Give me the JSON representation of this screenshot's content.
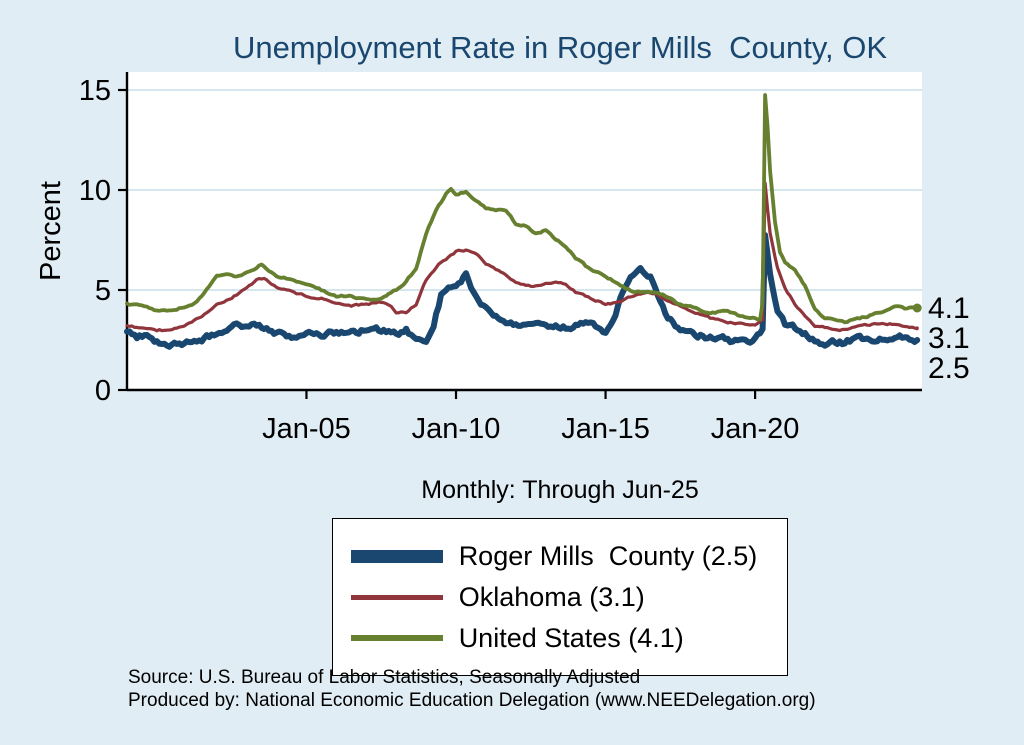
{
  "page": {
    "background": "#e1edf4",
    "title_color": "#1a476f"
  },
  "chart": {
    "title": "Unemployment Rate in Roger Mills  County, OK",
    "subtitle": "Monthly: Through Jun-25",
    "ylabel": "Percent"
  },
  "chart_data": {
    "type": "line",
    "title": "Unemployment Rate in Roger Mills  County, OK",
    "subtitle": "Monthly: Through Jun-25",
    "xlabel": "",
    "ylabel": "Percent",
    "ylim": [
      0,
      15
    ],
    "yticks": [
      0,
      5,
      10,
      15
    ],
    "x_range": [
      1999.0,
      2025.58
    ],
    "xticks": [
      {
        "t": 2005,
        "label": "Jan-05"
      },
      {
        "t": 2010,
        "label": "Jan-10"
      },
      {
        "t": 2015,
        "label": "Jan-15"
      },
      {
        "t": 2020,
        "label": "Jan-20"
      }
    ],
    "grid": true,
    "legend_position": "below",
    "series": [
      {
        "name": "Roger Mills  County",
        "end_label": "2.5",
        "color": "#1a476f",
        "width": 6,
        "jitter": 0.15,
        "seed": 7,
        "end_dot": false,
        "points": [
          [
            1999.0,
            2.8
          ],
          [
            1999.33,
            2.6
          ],
          [
            1999.67,
            2.7
          ],
          [
            2000.0,
            2.4
          ],
          [
            2000.33,
            2.2
          ],
          [
            2000.67,
            2.2
          ],
          [
            2001.0,
            2.3
          ],
          [
            2001.33,
            2.3
          ],
          [
            2001.67,
            2.6
          ],
          [
            2002.0,
            2.9
          ],
          [
            2002.33,
            3.1
          ],
          [
            2002.67,
            3.2
          ],
          [
            2003.0,
            3.1
          ],
          [
            2003.33,
            3.3
          ],
          [
            2003.67,
            3.1
          ],
          [
            2004.0,
            2.9
          ],
          [
            2004.33,
            2.7
          ],
          [
            2004.67,
            2.6
          ],
          [
            2005.0,
            2.8
          ],
          [
            2005.33,
            2.9
          ],
          [
            2005.67,
            2.8
          ],
          [
            2006.0,
            2.9
          ],
          [
            2006.33,
            3.0
          ],
          [
            2006.67,
            2.9
          ],
          [
            2007.0,
            3.1
          ],
          [
            2007.33,
            3.0
          ],
          [
            2007.67,
            2.9
          ],
          [
            2008.0,
            2.8
          ],
          [
            2008.33,
            3.0
          ],
          [
            2008.67,
            2.5
          ],
          [
            2009.0,
            2.3
          ],
          [
            2009.25,
            3.3
          ],
          [
            2009.5,
            4.7
          ],
          [
            2009.75,
            5.0
          ],
          [
            2010.0,
            5.1
          ],
          [
            2010.17,
            5.4
          ],
          [
            2010.33,
            5.7
          ],
          [
            2010.5,
            5.1
          ],
          [
            2010.75,
            4.5
          ],
          [
            2011.0,
            4.0
          ],
          [
            2011.33,
            3.7
          ],
          [
            2011.67,
            3.5
          ],
          [
            2012.0,
            3.3
          ],
          [
            2012.33,
            3.1
          ],
          [
            2012.67,
            3.2
          ],
          [
            2013.0,
            3.3
          ],
          [
            2013.33,
            3.2
          ],
          [
            2013.67,
            3.1
          ],
          [
            2014.0,
            3.2
          ],
          [
            2014.33,
            3.3
          ],
          [
            2014.67,
            3.1
          ],
          [
            2015.0,
            2.9
          ],
          [
            2015.25,
            3.4
          ],
          [
            2015.5,
            4.6
          ],
          [
            2015.75,
            5.3
          ],
          [
            2016.0,
            5.9
          ],
          [
            2016.17,
            6.2
          ],
          [
            2016.33,
            5.9
          ],
          [
            2016.5,
            5.7
          ],
          [
            2016.75,
            4.7
          ],
          [
            2017.0,
            3.9
          ],
          [
            2017.25,
            3.4
          ],
          [
            2017.5,
            3.1
          ],
          [
            2017.75,
            2.9
          ],
          [
            2018.0,
            2.8
          ],
          [
            2018.33,
            2.7
          ],
          [
            2018.67,
            2.6
          ],
          [
            2019.0,
            2.5
          ],
          [
            2019.33,
            2.4
          ],
          [
            2019.67,
            2.5
          ],
          [
            2020.0,
            2.6
          ],
          [
            2020.25,
            3.0
          ],
          [
            2020.333,
            7.6
          ],
          [
            2020.417,
            6.8
          ],
          [
            2020.5,
            5.8
          ],
          [
            2020.75,
            4.0
          ],
          [
            2021.0,
            3.3
          ],
          [
            2021.33,
            3.1
          ],
          [
            2021.67,
            2.9
          ],
          [
            2022.0,
            2.5
          ],
          [
            2022.33,
            2.3
          ],
          [
            2022.67,
            2.4
          ],
          [
            2023.0,
            2.4
          ],
          [
            2023.33,
            2.6
          ],
          [
            2023.67,
            2.5
          ],
          [
            2024.0,
            2.5
          ],
          [
            2024.33,
            2.7
          ],
          [
            2024.67,
            2.6
          ],
          [
            2025.0,
            2.6
          ],
          [
            2025.42,
            2.5
          ]
        ]
      },
      {
        "name": "Oklahoma",
        "end_label": "3.1",
        "color": "#90353b",
        "width": 3.2,
        "jitter": 0.05,
        "seed": 13,
        "end_dot": false,
        "points": [
          [
            1999.0,
            3.2
          ],
          [
            1999.5,
            3.1
          ],
          [
            2000.0,
            3.0
          ],
          [
            2000.5,
            3.0
          ],
          [
            2001.0,
            3.3
          ],
          [
            2001.5,
            3.7
          ],
          [
            2002.0,
            4.3
          ],
          [
            2002.5,
            4.6
          ],
          [
            2003.0,
            5.1
          ],
          [
            2003.33,
            5.5
          ],
          [
            2003.58,
            5.6
          ],
          [
            2003.83,
            5.3
          ],
          [
            2004.0,
            5.1
          ],
          [
            2004.5,
            4.9
          ],
          [
            2005.0,
            4.7
          ],
          [
            2005.5,
            4.6
          ],
          [
            2006.0,
            4.4
          ],
          [
            2006.5,
            4.2
          ],
          [
            2007.0,
            4.3
          ],
          [
            2007.5,
            4.4
          ],
          [
            2007.83,
            4.2
          ],
          [
            2008.0,
            3.9
          ],
          [
            2008.33,
            3.9
          ],
          [
            2008.67,
            4.3
          ],
          [
            2009.0,
            5.5
          ],
          [
            2009.5,
            6.4
          ],
          [
            2009.83,
            6.7
          ],
          [
            2010.0,
            6.9
          ],
          [
            2010.33,
            7.0
          ],
          [
            2010.67,
            6.8
          ],
          [
            2011.0,
            6.3
          ],
          [
            2011.5,
            5.9
          ],
          [
            2012.0,
            5.4
          ],
          [
            2012.5,
            5.2
          ],
          [
            2013.0,
            5.3
          ],
          [
            2013.5,
            5.4
          ],
          [
            2013.83,
            5.1
          ],
          [
            2014.0,
            4.9
          ],
          [
            2014.5,
            4.6
          ],
          [
            2015.0,
            4.3
          ],
          [
            2015.5,
            4.4
          ],
          [
            2016.0,
            4.8
          ],
          [
            2016.33,
            4.9
          ],
          [
            2016.67,
            4.8
          ],
          [
            2017.0,
            4.5
          ],
          [
            2017.5,
            4.2
          ],
          [
            2018.0,
            3.9
          ],
          [
            2018.5,
            3.6
          ],
          [
            2019.0,
            3.4
          ],
          [
            2019.5,
            3.3
          ],
          [
            2020.0,
            3.2
          ],
          [
            2020.25,
            3.5
          ],
          [
            2020.333,
            10.3
          ],
          [
            2020.417,
            9.0
          ],
          [
            2020.5,
            7.8
          ],
          [
            2020.75,
            6.1
          ],
          [
            2021.0,
            5.1
          ],
          [
            2021.33,
            4.3
          ],
          [
            2021.67,
            3.7
          ],
          [
            2022.0,
            3.2
          ],
          [
            2022.5,
            3.1
          ],
          [
            2023.0,
            3.0
          ],
          [
            2023.5,
            3.2
          ],
          [
            2024.0,
            3.3
          ],
          [
            2024.5,
            3.3
          ],
          [
            2025.0,
            3.2
          ],
          [
            2025.42,
            3.1
          ]
        ]
      },
      {
        "name": "United States",
        "end_label": "4.1",
        "color": "#66802f",
        "width": 3.8,
        "jitter": 0.05,
        "seed": 29,
        "end_dot": true,
        "points": [
          [
            1999.0,
            4.3
          ],
          [
            1999.5,
            4.2
          ],
          [
            2000.0,
            4.0
          ],
          [
            2000.5,
            4.0
          ],
          [
            2001.0,
            4.2
          ],
          [
            2001.33,
            4.4
          ],
          [
            2001.67,
            5.0
          ],
          [
            2002.0,
            5.7
          ],
          [
            2002.33,
            5.8
          ],
          [
            2002.67,
            5.7
          ],
          [
            2003.0,
            5.9
          ],
          [
            2003.33,
            6.1
          ],
          [
            2003.5,
            6.3
          ],
          [
            2003.67,
            6.1
          ],
          [
            2004.0,
            5.7
          ],
          [
            2004.5,
            5.5
          ],
          [
            2005.0,
            5.3
          ],
          [
            2005.5,
            5.0
          ],
          [
            2006.0,
            4.7
          ],
          [
            2006.5,
            4.7
          ],
          [
            2007.0,
            4.5
          ],
          [
            2007.5,
            4.6
          ],
          [
            2008.0,
            5.0
          ],
          [
            2008.33,
            5.4
          ],
          [
            2008.67,
            6.1
          ],
          [
            2009.0,
            7.8
          ],
          [
            2009.33,
            9.0
          ],
          [
            2009.67,
            9.8
          ],
          [
            2009.83,
            10.0
          ],
          [
            2010.0,
            9.8
          ],
          [
            2010.33,
            9.9
          ],
          [
            2010.67,
            9.5
          ],
          [
            2011.0,
            9.1
          ],
          [
            2011.33,
            9.0
          ],
          [
            2011.67,
            9.0
          ],
          [
            2012.0,
            8.3
          ],
          [
            2012.33,
            8.2
          ],
          [
            2012.67,
            7.8
          ],
          [
            2013.0,
            8.0
          ],
          [
            2013.33,
            7.5
          ],
          [
            2013.67,
            7.2
          ],
          [
            2014.0,
            6.6
          ],
          [
            2014.33,
            6.2
          ],
          [
            2014.67,
            5.9
          ],
          [
            2015.0,
            5.7
          ],
          [
            2015.33,
            5.4
          ],
          [
            2015.67,
            5.1
          ],
          [
            2016.0,
            4.9
          ],
          [
            2016.5,
            4.9
          ],
          [
            2017.0,
            4.7
          ],
          [
            2017.5,
            4.3
          ],
          [
            2018.0,
            4.1
          ],
          [
            2018.5,
            3.8
          ],
          [
            2019.0,
            4.0
          ],
          [
            2019.5,
            3.7
          ],
          [
            2020.0,
            3.6
          ],
          [
            2020.167,
            3.5
          ],
          [
            2020.25,
            4.4
          ],
          [
            2020.333,
            14.8
          ],
          [
            2020.417,
            13.2
          ],
          [
            2020.5,
            11.0
          ],
          [
            2020.667,
            8.4
          ],
          [
            2020.83,
            6.9
          ],
          [
            2021.0,
            6.4
          ],
          [
            2021.33,
            6.0
          ],
          [
            2021.67,
            5.2
          ],
          [
            2022.0,
            4.0
          ],
          [
            2022.33,
            3.6
          ],
          [
            2022.67,
            3.5
          ],
          [
            2023.0,
            3.4
          ],
          [
            2023.5,
            3.6
          ],
          [
            2024.0,
            3.8
          ],
          [
            2024.5,
            4.1
          ],
          [
            2024.83,
            4.2
          ],
          [
            2025.0,
            4.1
          ],
          [
            2025.42,
            4.1
          ]
        ]
      }
    ]
  },
  "legend": {
    "items": [
      {
        "label": "Roger Mills  County (2.5)"
      },
      {
        "label": "Oklahoma (3.1)"
      },
      {
        "label": "United States (4.1)"
      }
    ]
  },
  "footer": {
    "source": "Source: U.S. Bureau of Labor Statistics, Seasonally Adjusted",
    "produced_by": "Produced by: National Economic Education Delegation (www.NEEDelegation.org)"
  }
}
